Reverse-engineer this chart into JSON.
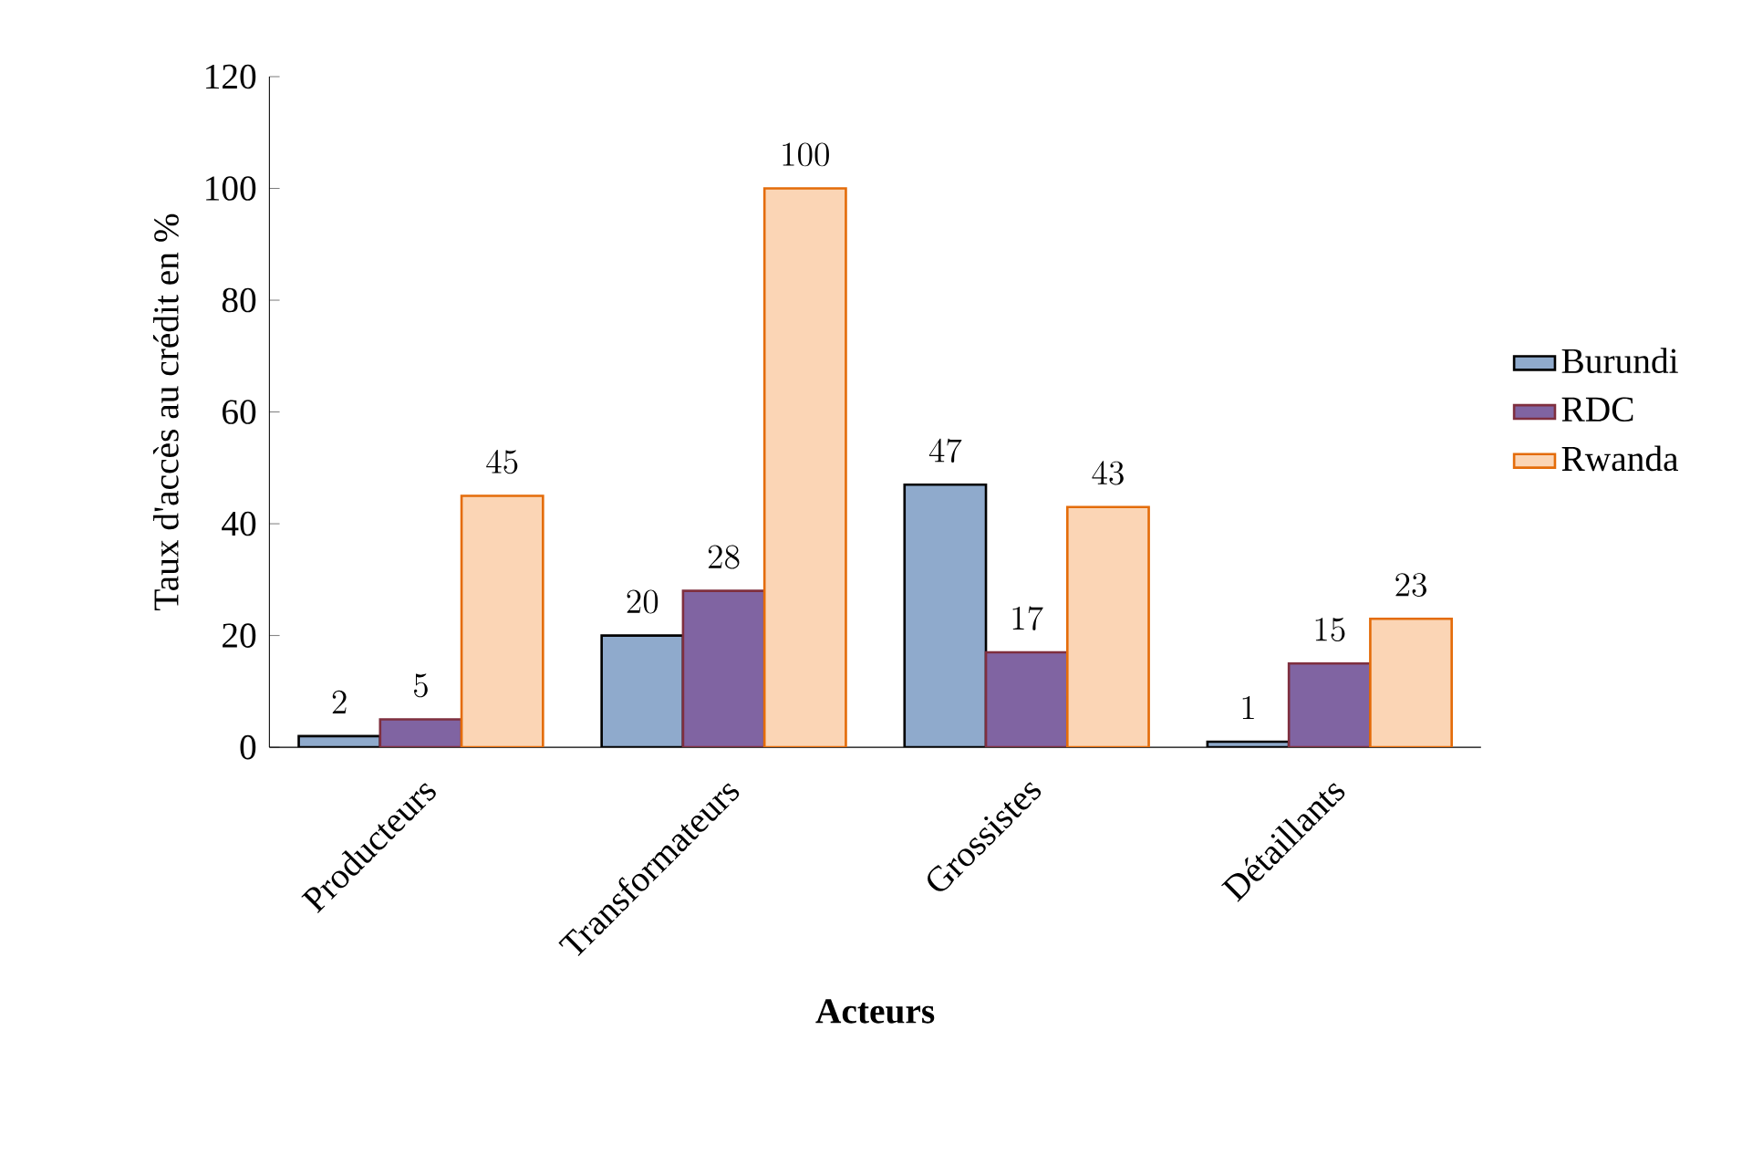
{
  "chart_data": {
    "type": "bar",
    "xlabel": "**Acteurs**",
    "ylabel": "Taux d'accès au crédit en %",
    "categories": [
      "Producteurs",
      "Transformateurs",
      "Grossistes",
      "Détaillants"
    ],
    "series": [
      {
        "name": "Burundi",
        "color": "#8faacc",
        "values": [
          2,
          20,
          47,
          1
        ]
      },
      {
        "name": "RDC",
        "color": "#8064a2",
        "values": [
          5,
          28,
          17,
          15
        ]
      },
      {
        "name": "Rwanda",
        "color": "#fbd5b5",
        "values": [
          45,
          100,
          43,
          23
        ]
      }
    ],
    "ylim": [
      0,
      120
    ],
    "yticks": [
      0,
      20,
      40,
      60,
      80,
      100,
      120
    ],
    "data_labels": true,
    "legend": "right",
    "grid": false
  }
}
